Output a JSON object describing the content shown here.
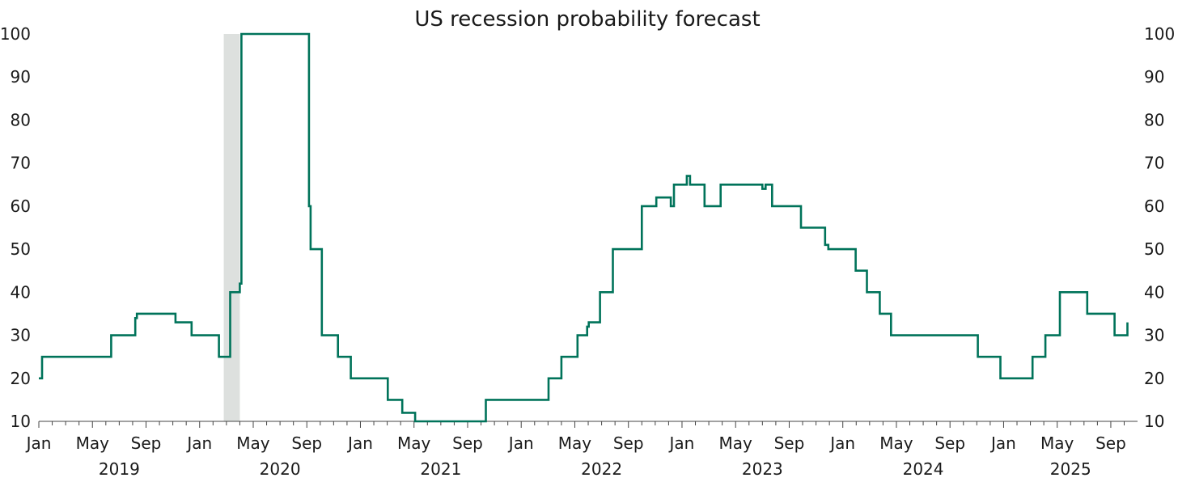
{
  "chart_data": {
    "type": "line",
    "title": "US recession probability forecast",
    "xlabel": "",
    "ylabel": "",
    "ylim": [
      10,
      100
    ],
    "y_ticks": [
      10,
      20,
      30,
      40,
      50,
      60,
      70,
      80,
      90,
      100
    ],
    "x_range": [
      2019.0,
      2025.833
    ],
    "month_ticks": [
      "Jan",
      "May",
      "Sep",
      "Jan",
      "May",
      "Sep",
      "Jan",
      "May",
      "Sep",
      "Jan",
      "May",
      "Sep",
      "Jan",
      "May",
      "Sep",
      "Jan",
      "May",
      "Sep",
      "Jan",
      "May",
      "Sep"
    ],
    "year_labels": [
      "2019",
      "2020",
      "2021",
      "2022",
      "2023",
      "2024",
      "2025"
    ],
    "grid": false,
    "legend": "none",
    "recession_shading": [
      2020.15,
      2020.25
    ],
    "series": [
      {
        "name": "US recession probability",
        "color": "#00735a",
        "step": true,
        "points": [
          [
            2019.0,
            20
          ],
          [
            2019.02,
            25
          ],
          [
            2019.45,
            30
          ],
          [
            2019.6,
            34
          ],
          [
            2019.61,
            35
          ],
          [
            2019.85,
            33
          ],
          [
            2019.95,
            30
          ],
          [
            2020.12,
            25
          ],
          [
            2020.19,
            40
          ],
          [
            2020.25,
            42
          ],
          [
            2020.26,
            100
          ],
          [
            2020.68,
            60
          ],
          [
            2020.69,
            50
          ],
          [
            2020.76,
            30
          ],
          [
            2020.86,
            25
          ],
          [
            2020.94,
            20
          ],
          [
            2021.17,
            15
          ],
          [
            2021.26,
            12
          ],
          [
            2021.34,
            10
          ],
          [
            2021.78,
            15
          ],
          [
            2022.17,
            20
          ],
          [
            2022.25,
            25
          ],
          [
            2022.35,
            30
          ],
          [
            2022.41,
            32
          ],
          [
            2022.42,
            33
          ],
          [
            2022.49,
            40
          ],
          [
            2022.57,
            50
          ],
          [
            2022.75,
            60
          ],
          [
            2022.84,
            62
          ],
          [
            2022.93,
            60
          ],
          [
            2022.95,
            65
          ],
          [
            2023.03,
            67
          ],
          [
            2023.05,
            65
          ],
          [
            2023.14,
            60
          ],
          [
            2023.24,
            65
          ],
          [
            2023.5,
            64
          ],
          [
            2023.52,
            65
          ],
          [
            2023.56,
            60
          ],
          [
            2023.74,
            55
          ],
          [
            2023.89,
            51
          ],
          [
            2023.91,
            50
          ],
          [
            2024.08,
            45
          ],
          [
            2024.15,
            40
          ],
          [
            2024.23,
            35
          ],
          [
            2024.3,
            30
          ],
          [
            2024.84,
            25
          ],
          [
            2024.98,
            20
          ],
          [
            2025.18,
            25
          ],
          [
            2025.26,
            30
          ],
          [
            2025.35,
            40
          ],
          [
            2025.52,
            35
          ],
          [
            2025.69,
            30
          ],
          [
            2025.77,
            33
          ]
        ]
      }
    ]
  }
}
